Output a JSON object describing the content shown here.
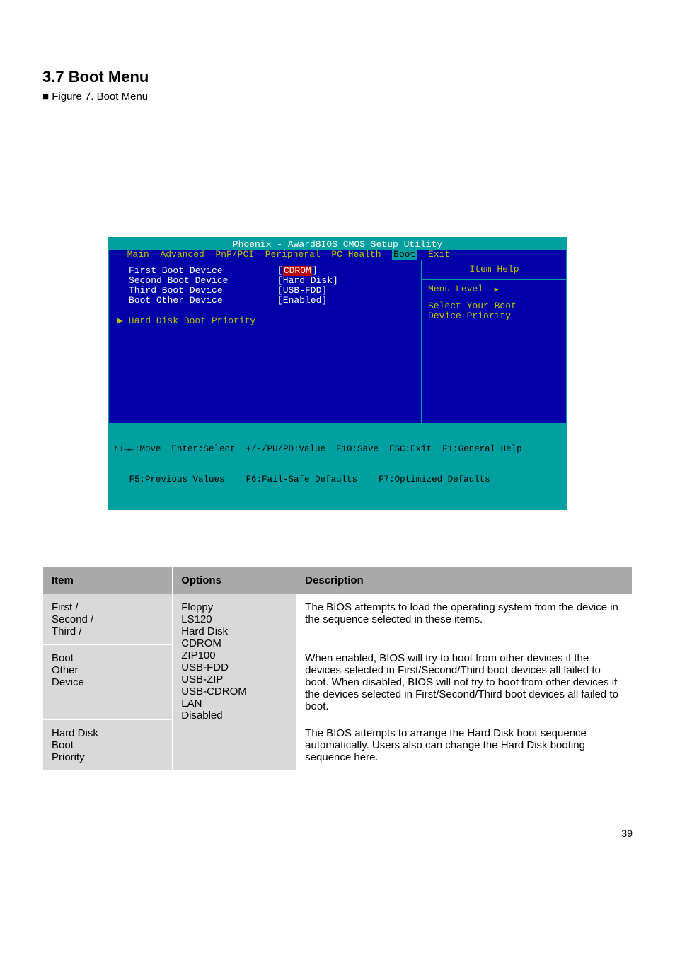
{
  "bios": {
    "utility_title": "Phoenix - AwardBIOS CMOS Setup Utility",
    "menu": {
      "items": [
        "Main",
        "Advanced",
        "PnP/PCI",
        "Peripheral",
        "PC Health",
        "Boot",
        "Exit"
      ],
      "active_index": 5
    },
    "settings": [
      {
        "label": "First Boot Device",
        "value": "CDROM",
        "bracket_style": "double",
        "selected": true
      },
      {
        "label": "Second Boot Device",
        "value": "Hard Disk",
        "bracket_style": "single",
        "selected": false
      },
      {
        "label": "Third Boot Device",
        "value": "USB-FDD",
        "bracket_style": "single",
        "selected": false
      },
      {
        "label": "Boot Other Device",
        "value": "Enabled",
        "bracket_style": "single",
        "selected": false
      }
    ],
    "submenu_label": "Hard Disk Boot Priority",
    "help": {
      "title": "Item Help",
      "menu_level_label": "Menu Level",
      "text_line1": "Select Your Boot",
      "text_line2": "Device Priority"
    },
    "footer": {
      "line1": "↑↓→←:Move  Enter:Select  +/-/PU/PD:Value  F10:Save  ESC:Exit  F1:General Help",
      "line2": "   F5:Previous Values    F6:Fail-Safe Defaults    F7:Optimized Defaults"
    },
    "colors": {
      "frame": "#00a0a0",
      "body_bg": "#0000a8",
      "text_primary": "#ffffff",
      "text_accent": "#c0c000",
      "selected_bg": "#c00000",
      "footer_text": "#000000"
    }
  },
  "section": {
    "title": "3.7 Boot Menu",
    "subtitle": "■ Figure 7. Boot Menu"
  },
  "table": {
    "headers": {
      "item": "Item",
      "options": "Options",
      "description": "Description"
    },
    "rows": [
      {
        "item_lines": [
          "First /",
          "Second /",
          "Third /",
          "Boot",
          "Other",
          "Device"
        ],
        "options": "Floppy\nLS120\nHard Disk\nCDROM\nZIP100\nUSB-FDD\nUSB-ZIP\nUSB-CDROM\nLAN\nDisabled",
        "options_span": 3,
        "desc": "The BIOS attempts to load the operating system from the device in the sequence selected in these items."
      },
      {
        "item_lines": [],
        "desc": "When enabled, BIOS will try to boot from other devices if the devices selected in First/Second/Third boot devices all failed to boot. When disabled, BIOS will not try to boot from other devices if the devices selected in First/Second/Third boot devices all failed to boot."
      },
      {
        "item_lines": [
          "Hard Disk",
          "Boot",
          "Priority"
        ],
        "desc": "The BIOS attempts to arrange the Hard Disk boot sequence automatically. Users also can change the Hard Disk booting sequence here."
      }
    ]
  },
  "page_number": "39"
}
